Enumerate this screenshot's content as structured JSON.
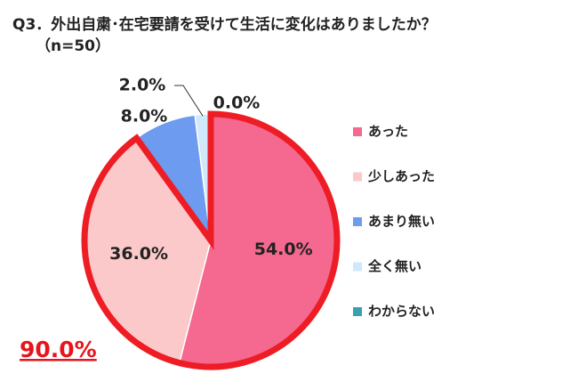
{
  "chart_data": {
    "type": "pie",
    "title": "Q3．外出自粛･在宅要請を受けて生活に変化はありましたか？",
    "subtitle": "（n=50）",
    "categories": [
      "あった",
      "少しあった",
      "あまり無い",
      "全く無い",
      "わからない"
    ],
    "values": [
      54.0,
      36.0,
      8.0,
      2.0,
      0.0
    ],
    "value_labels": [
      "54.0%",
      "36.0%",
      "8.0%",
      "2.0%",
      "0.0%"
    ],
    "colors": [
      "#f5688f",
      "#fbc9c9",
      "#6c9bef",
      "#cfe8fb",
      "#3a9fb1"
    ],
    "annotation": "90.0%",
    "legend": "right"
  }
}
